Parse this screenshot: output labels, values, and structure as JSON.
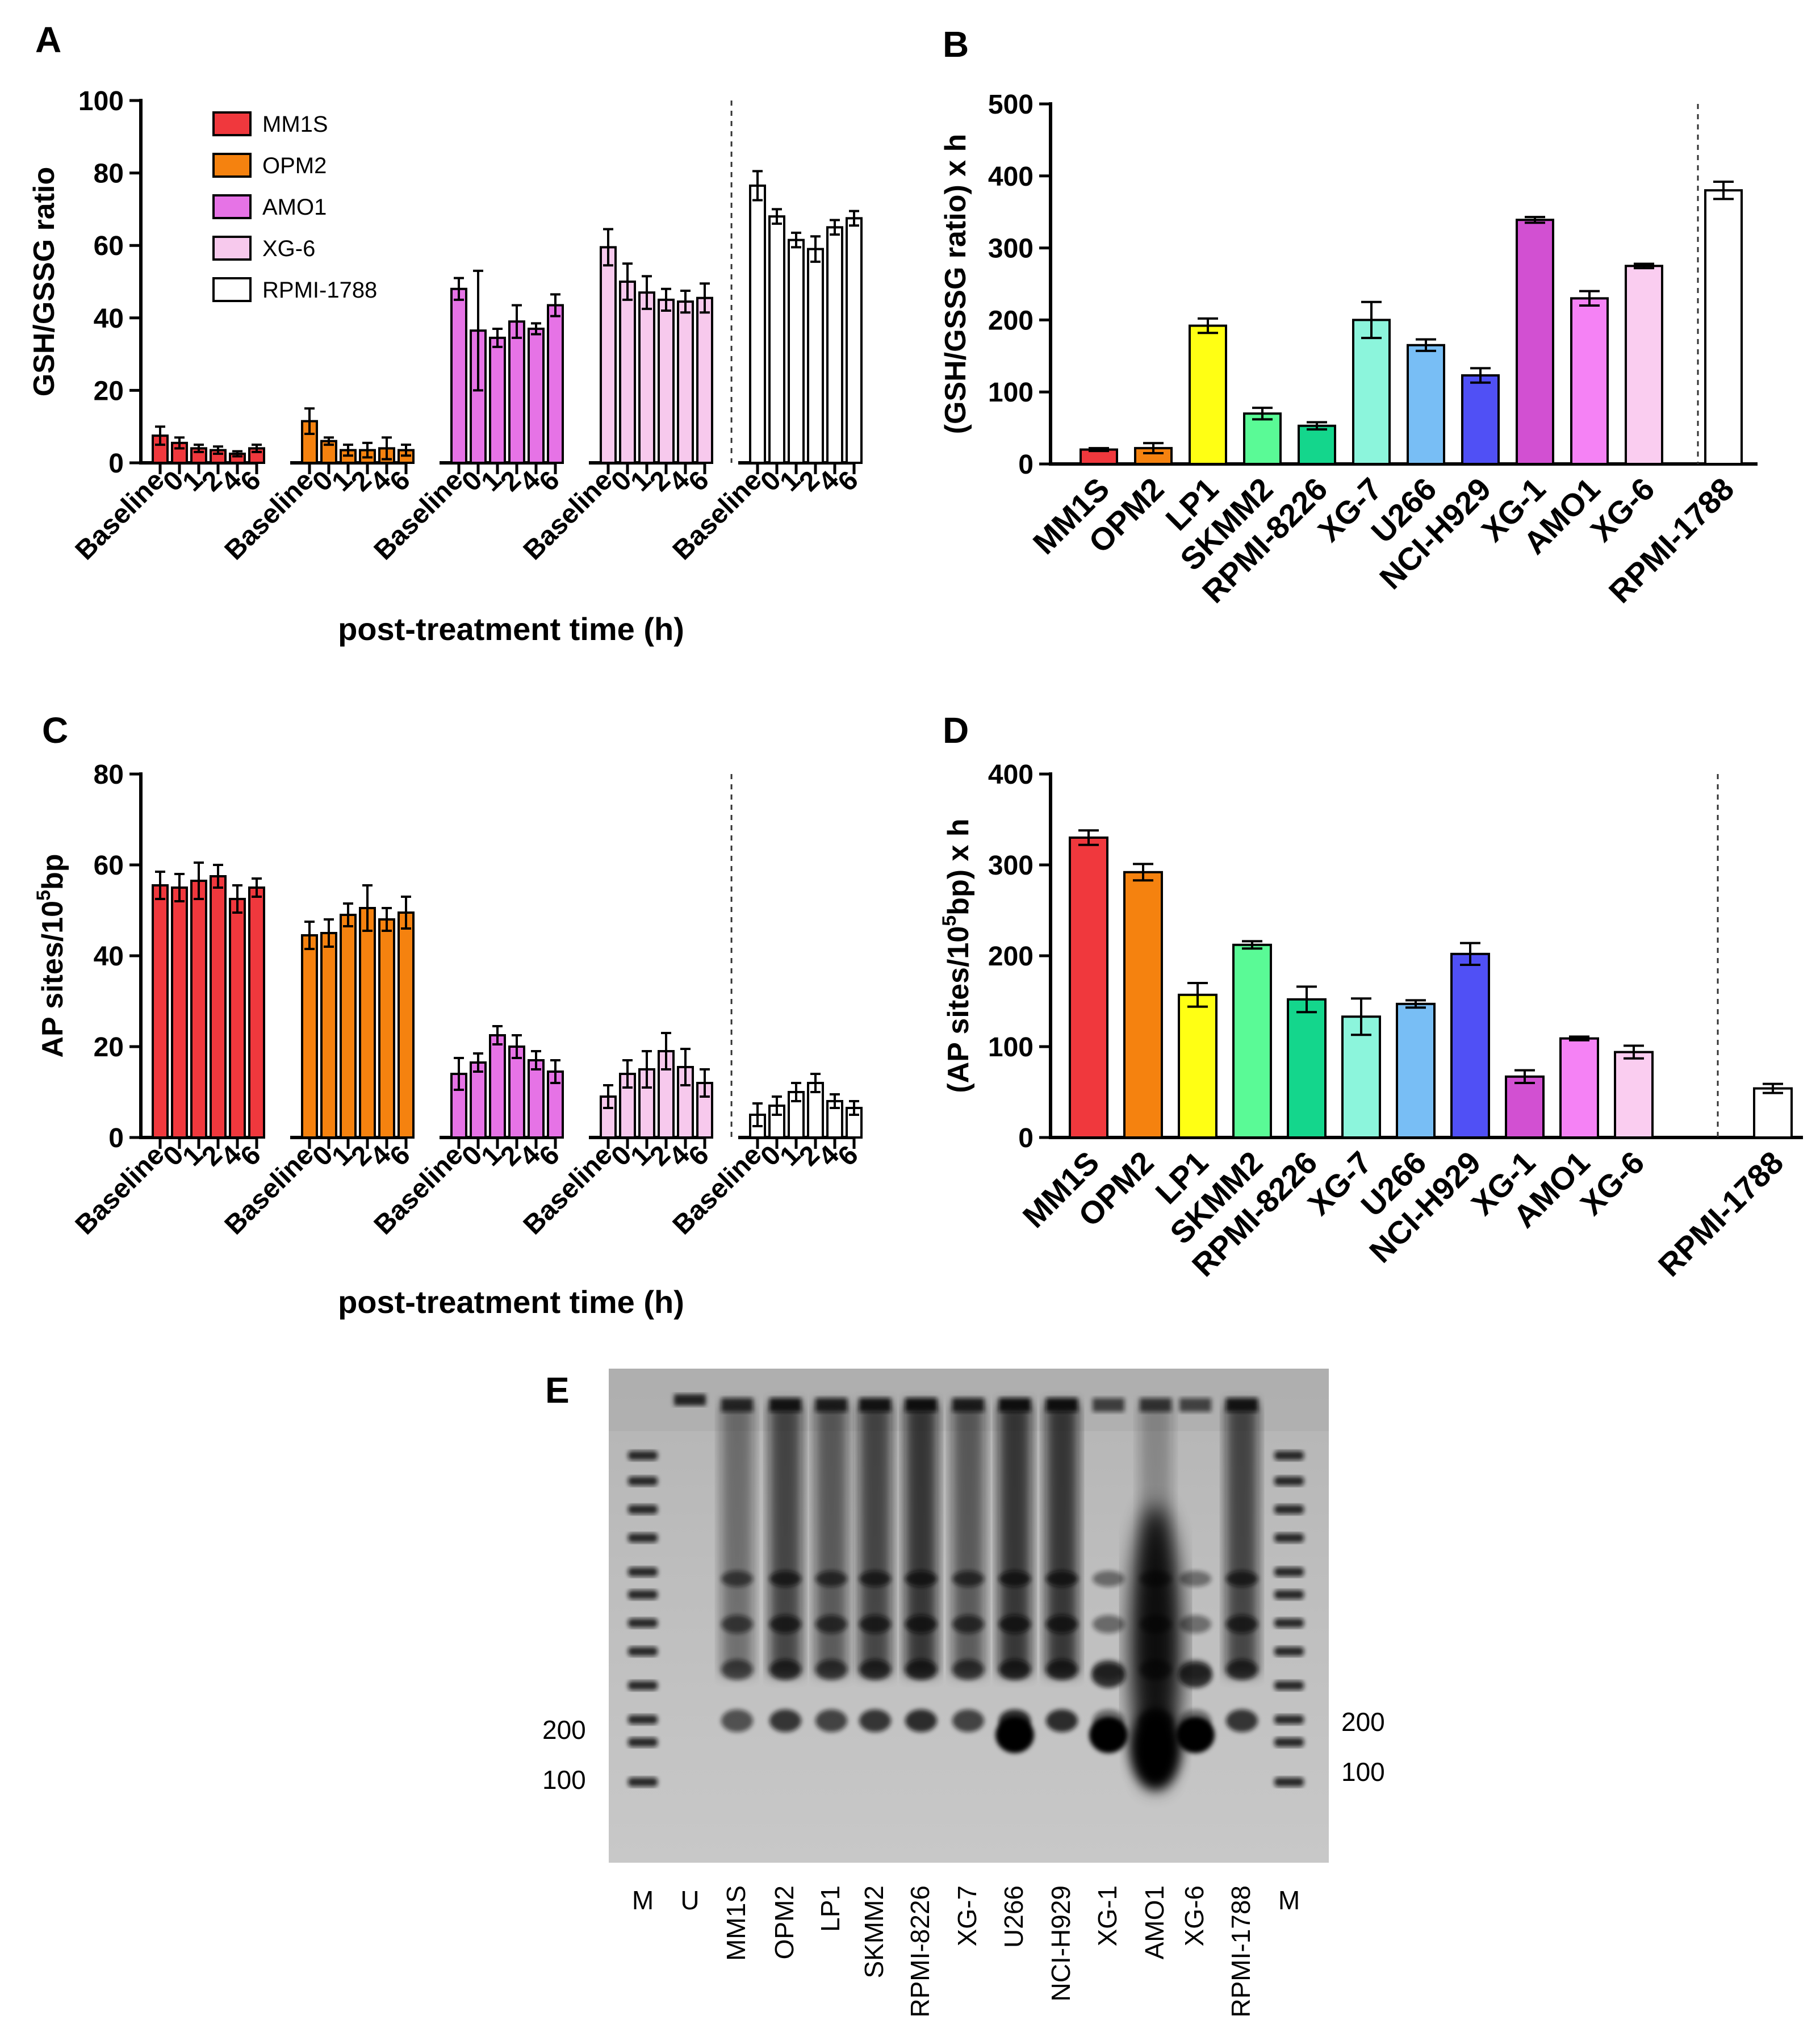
{
  "chart_data": [
    {
      "panel": "A",
      "type": "bar",
      "ylabel": "GSH/GSSG ratio",
      "xlabel": "post-treatment time (h)",
      "ylim": [
        0,
        100
      ],
      "yticks": [
        0,
        20,
        40,
        60,
        80,
        100
      ],
      "categories": [
        "Baseline",
        "0",
        "1",
        "2",
        "4",
        "6"
      ],
      "legend": [
        "MM1S",
        "OPM2",
        "AMO1",
        "XG-6",
        "RPMI-1788"
      ],
      "series": [
        {
          "name": "MM1S",
          "color": "#f0383d",
          "values": [
            7.5,
            5.5,
            4,
            3.5,
            2.5,
            4
          ],
          "err": [
            2.5,
            1.5,
            1,
            1,
            0.7,
            1
          ]
        },
        {
          "name": "OPM2",
          "color": "#f5820f",
          "values": [
            11.5,
            6,
            3.5,
            3.5,
            4,
            3.5
          ],
          "err": [
            3.5,
            1,
            1.5,
            2,
            3,
            1.5
          ]
        },
        {
          "name": "AMO1",
          "color": "#e673e6",
          "values": [
            48,
            36.5,
            34.5,
            39,
            37,
            43.5
          ],
          "err": [
            3,
            16.5,
            2.5,
            4.5,
            1.5,
            3
          ]
        },
        {
          "name": "XG-6",
          "color": "#f7c9ed",
          "values": [
            59.5,
            50,
            47,
            45,
            44.5,
            45.5
          ],
          "err": [
            5,
            5,
            4.5,
            3,
            3,
            4
          ]
        },
        {
          "name": "RPMI-1788",
          "color": "#ffffff",
          "values": [
            76.5,
            68,
            61.5,
            59,
            65,
            67.5
          ],
          "err": [
            4,
            2,
            2,
            3.5,
            2,
            2
          ]
        }
      ]
    },
    {
      "panel": "B",
      "type": "bar",
      "ylabel": "(GSH/GSSG ratio) x h",
      "ylim": [
        0,
        500
      ],
      "yticks": [
        0,
        100,
        200,
        300,
        400,
        500
      ],
      "categories": [
        "MM1S",
        "OPM2",
        "LP1",
        "SKMM2",
        "RPMI-8226",
        "XG-7",
        "U266",
        "NCI-H929",
        "XG-1",
        "AMO1",
        "XG-6",
        "RPMI-1788"
      ],
      "values": [
        20,
        22,
        192,
        70,
        53,
        200,
        165,
        123,
        339,
        230,
        275,
        380
      ],
      "err": [
        2,
        7,
        10,
        8,
        5,
        25,
        8,
        10,
        4,
        10,
        3,
        12
      ],
      "colors": [
        "#f0383d",
        "#f5820f",
        "#ffff14",
        "#5afa96",
        "#14d68c",
        "#8cf5dc",
        "#78bef5",
        "#5050f5",
        "#d250d2",
        "#f582f5",
        "#facdf0",
        "#ffffff"
      ]
    },
    {
      "panel": "C",
      "type": "bar",
      "ylabel": "AP sites/10^5bp",
      "xlabel": "post-treatment time (h)",
      "ylim": [
        0,
        80
      ],
      "yticks": [
        0,
        20,
        40,
        60,
        80
      ],
      "categories": [
        "Baseline",
        "0",
        "1",
        "2",
        "4",
        "6"
      ],
      "series": [
        {
          "name": "MM1S",
          "color": "#f0383d",
          "values": [
            55.5,
            55,
            56.5,
            57.5,
            52.5,
            55
          ],
          "err": [
            3,
            3,
            4,
            2.5,
            3,
            2
          ]
        },
        {
          "name": "OPM2",
          "color": "#f5820f",
          "values": [
            44.5,
            45,
            49,
            50.5,
            48,
            49.5
          ],
          "err": [
            3,
            3,
            2.5,
            5,
            2.5,
            3.5
          ]
        },
        {
          "name": "AMO1",
          "color": "#e673e6",
          "values": [
            14,
            16.5,
            22.5,
            20,
            17,
            14.5
          ],
          "err": [
            3.5,
            2,
            2,
            2.5,
            2,
            2.5
          ]
        },
        {
          "name": "XG-6",
          "color": "#f7c9ed",
          "values": [
            9,
            14,
            15,
            19,
            15.5,
            12
          ],
          "err": [
            2.5,
            3,
            4,
            4,
            4,
            3
          ]
        },
        {
          "name": "RPMI-1788",
          "color": "#ffffff",
          "values": [
            5,
            7,
            10,
            12,
            8,
            6.5
          ],
          "err": [
            2.5,
            2,
            2,
            2,
            1.5,
            1.5
          ]
        }
      ]
    },
    {
      "panel": "D",
      "type": "bar",
      "ylabel": "(AP sites/10^5bp) x h",
      "ylim": [
        0,
        400
      ],
      "yticks": [
        0,
        100,
        200,
        300,
        400
      ],
      "categories": [
        "MM1S",
        "OPM2",
        "LP1",
        "SKMM2",
        "RPMI-8226",
        "XG-7",
        "U266",
        "NCI-H929",
        "XG-1",
        "AMO1",
        "XG-6",
        "RPMI-1788"
      ],
      "values": [
        330,
        292,
        157,
        212,
        152,
        133,
        147,
        202,
        67,
        109,
        94,
        54
      ],
      "err": [
        8,
        9,
        13,
        4,
        14,
        20,
        4,
        12,
        7,
        2,
        7,
        5
      ],
      "colors": [
        "#f0383d",
        "#f5820f",
        "#ffff14",
        "#5afa96",
        "#14d68c",
        "#8cf5dc",
        "#78bef5",
        "#5050f5",
        "#d250d2",
        "#f582f5",
        "#facdf0",
        "#ffffff"
      ]
    }
  ],
  "panel_labels": {
    "a": "A",
    "b": "B",
    "c": "C",
    "d": "D",
    "e": "E"
  },
  "gel": {
    "lanes": [
      "M",
      "U",
      "MM1S",
      "OPM2",
      "LP1",
      "SKMM2",
      "RPMI-8226",
      "XG-7",
      "U266",
      "NCI-H929",
      "XG-1",
      "AMO1",
      "XG-6",
      "RPMI-1788",
      "M"
    ],
    "marker_labels_left": [
      "200",
      "100"
    ],
    "marker_labels_right": [
      "200",
      "100"
    ]
  }
}
